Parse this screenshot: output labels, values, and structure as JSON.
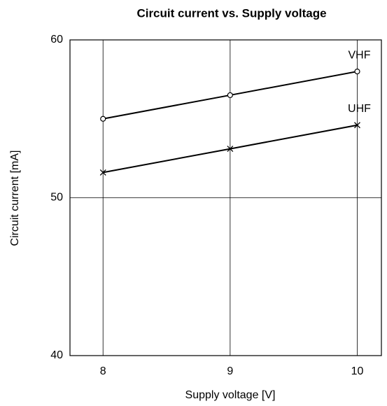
{
  "chart_data": {
    "type": "line",
    "title": "Circuit current vs. Supply voltage",
    "x_label": "Supply voltage [V]",
    "y_label": "Circuit current [mA]",
    "x": [
      8,
      9,
      10
    ],
    "series": [
      {
        "name": "VHF",
        "color": "#000000",
        "marker": "circle",
        "values": [
          55.0,
          56.5,
          58.0
        ]
      },
      {
        "name": "UHF",
        "color": "#000000",
        "marker": "x",
        "values": [
          51.6,
          53.1,
          54.6
        ]
      }
    ],
    "xlim": [
      7.74,
      10.19
    ],
    "xticks": [
      8,
      9,
      10
    ],
    "ylim": [
      40,
      60
    ],
    "yticks": [
      40,
      50,
      60
    ],
    "grid": true
  }
}
